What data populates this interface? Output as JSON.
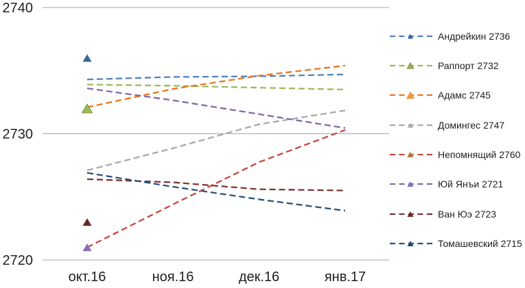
{
  "chart_data": {
    "type": "line",
    "title": "",
    "line_style": "dashed",
    "marker_shape": "triangle",
    "markers_at_category": "окт.16",
    "grid": true,
    "legend_position": "right",
    "categories": [
      "окт.16",
      "ноя.16",
      "дек.16",
      "янв.17"
    ],
    "y_ticks": [
      2740,
      2730,
      2720
    ],
    "ylim": [
      2720,
      2740
    ],
    "colors": {
      "grid": "#a6a6a6",
      "text": "#1f1f1f",
      "background": "#ffffff"
    },
    "series": [
      {
        "label": "Андрейкин 2736",
        "player": "Андрейкин",
        "rating": 2736,
        "color": "#4f81bd",
        "marker_color": "#3a6597",
        "marker_value": 2736,
        "marker_visible": true,
        "plot_marker_size": 13,
        "legend_marker_size": 8,
        "values": [
          2734.3,
          2734.5,
          2734.55,
          2734.7
        ]
      },
      {
        "label": "Раппорт 2732",
        "player": "Раппорт",
        "rating": 2732,
        "color": "#9bbb59",
        "marker_color": "#9bbb59",
        "marker_stroke": "#7a9340",
        "marker_value": 2732,
        "marker_visible": true,
        "plot_marker_size": 15,
        "legend_marker_size": 9,
        "values": [
          2733.9,
          2733.8,
          2733.65,
          2733.5
        ]
      },
      {
        "label": "Адамс 2745",
        "player": "Адамс",
        "rating": 2745,
        "color": "#e8751c",
        "marker_color": "#f0953c",
        "marker_value": 2745,
        "marker_visible": false,
        "plot_marker_size": 13,
        "legend_marker_size": 12,
        "values": [
          2732.1,
          2733.55,
          2734.6,
          2735.4
        ]
      },
      {
        "label": "Домингес 2747",
        "player": "Домингес",
        "rating": 2747,
        "color": "#a8a8a8",
        "marker_color": "#a8a8a8",
        "marker_value": 2747,
        "marker_visible": false,
        "plot_marker_size": 13,
        "legend_marker_size": 8,
        "values": [
          2727.1,
          2728.85,
          2730.75,
          2731.85
        ]
      },
      {
        "label": "Непомнящий 2760",
        "player": "Непомнящий",
        "rating": 2760,
        "color": "#c9463e",
        "marker_color": "#c0504d",
        "marker_stroke": "#9bbb59",
        "marker_value": 2760,
        "marker_visible": false,
        "plot_marker_size": 13,
        "legend_marker_size": 8,
        "values": [
          2721.0,
          2724.4,
          2727.75,
          2730.3
        ]
      },
      {
        "label": "Юй Янъи 2721",
        "player": "Юй Янъи",
        "rating": 2721,
        "color": "#8467a7",
        "marker_color": "#8a6fb6",
        "marker_value": 2721,
        "marker_visible": true,
        "plot_marker_size": 13,
        "legend_marker_size": 9,
        "values": [
          2733.6,
          2732.65,
          2731.55,
          2730.45
        ]
      },
      {
        "label": "Ван Юэ 2723",
        "player": "Ван Юэ",
        "rating": 2723,
        "color": "#7a332e",
        "marker_color": "#6b2823",
        "marker_value": 2723,
        "marker_visible": true,
        "plot_marker_size": 13,
        "legend_marker_size": 9,
        "values": [
          2726.4,
          2726.15,
          2725.6,
          2725.5
        ]
      },
      {
        "label": "Томашевский 2715",
        "player": "Томашевский",
        "rating": 2715,
        "color": "#2a5178",
        "marker_color": "#1f497d",
        "marker_value": 2715,
        "marker_visible": false,
        "plot_marker_size": 13,
        "legend_marker_size": 9,
        "values": [
          2726.9,
          2725.8,
          2724.8,
          2723.9
        ]
      }
    ]
  }
}
